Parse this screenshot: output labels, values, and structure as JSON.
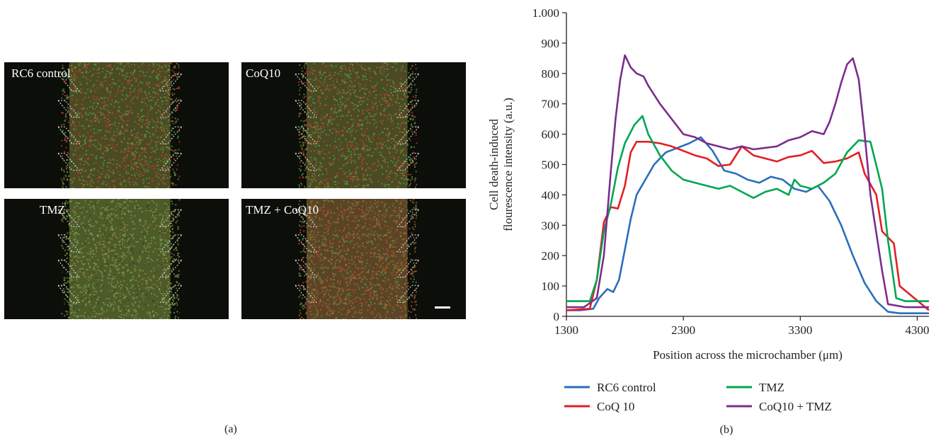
{
  "panel_a": {
    "tag": "(a)",
    "images": [
      {
        "label": "RC6 control",
        "tint": "mixed"
      },
      {
        "label": "CoQ10",
        "tint": "mixed"
      },
      {
        "label": "TMZ",
        "tint": "green"
      },
      {
        "label": "TMZ + CoQ10",
        "tint": "red"
      }
    ]
  },
  "panel_b": {
    "tag": "(b)"
  },
  "chart_data": {
    "type": "line",
    "xlabel": "Position across the microchamber (μm)",
    "ylabel_line1": "Cell death-induced",
    "ylabel_line2": "flourescence intensity (a.u.)",
    "xlim": [
      1300,
      4400
    ],
    "ylim": [
      0,
      1000
    ],
    "xticks": [
      1300,
      2300,
      3300,
      4300
    ],
    "xtick_labels": [
      "1300",
      "2300",
      "3300",
      "4300"
    ],
    "yticks": [
      0,
      100,
      200,
      300,
      400,
      500,
      600,
      700,
      800,
      900,
      1000
    ],
    "ytick_labels": [
      "0",
      "100",
      "200",
      "300",
      "400",
      "500",
      "600",
      "700",
      "800",
      "900",
      "1.000"
    ],
    "legend_position": "bottom",
    "series": [
      {
        "name": "RC6 control",
        "color": "#2a6ebb",
        "x": [
          1300,
          1420,
          1530,
          1580,
          1650,
          1700,
          1750,
          1800,
          1850,
          1900,
          1960,
          2050,
          2150,
          2250,
          2350,
          2450,
          2550,
          2650,
          2750,
          2850,
          2950,
          3050,
          3150,
          3250,
          3350,
          3450,
          3550,
          3650,
          3750,
          3850,
          3950,
          4050,
          4150,
          4400
        ],
        "y": [
          20,
          20,
          25,
          60,
          90,
          80,
          120,
          220,
          320,
          400,
          440,
          500,
          540,
          555,
          570,
          590,
          545,
          480,
          470,
          450,
          440,
          460,
          450,
          420,
          410,
          430,
          380,
          300,
          200,
          110,
          50,
          15,
          10,
          10
        ]
      },
      {
        "name": "CoQ 10",
        "color": "#e31e24",
        "x": [
          1300,
          1500,
          1560,
          1620,
          1680,
          1740,
          1800,
          1850,
          1900,
          2000,
          2100,
          2200,
          2300,
          2400,
          2500,
          2600,
          2700,
          2800,
          2900,
          3000,
          3100,
          3200,
          3300,
          3400,
          3500,
          3600,
          3700,
          3800,
          3850,
          3950,
          4000,
          4100,
          4150,
          4400
        ],
        "y": [
          20,
          25,
          120,
          310,
          360,
          355,
          430,
          540,
          575,
          575,
          570,
          560,
          545,
          530,
          520,
          495,
          500,
          560,
          530,
          520,
          510,
          525,
          530,
          545,
          505,
          510,
          520,
          540,
          470,
          400,
          280,
          240,
          100,
          20
        ]
      },
      {
        "name": "TMZ",
        "color": "#00a651",
        "x": [
          1300,
          1500,
          1560,
          1620,
          1680,
          1740,
          1800,
          1880,
          1950,
          2000,
          2100,
          2200,
          2300,
          2400,
          2500,
          2600,
          2700,
          2800,
          2900,
          3000,
          3100,
          3200,
          3250,
          3300,
          3400,
          3500,
          3600,
          3700,
          3800,
          3900,
          4000,
          4050,
          4120,
          4200,
          4400
        ],
        "y": [
          50,
          50,
          120,
          280,
          370,
          490,
          570,
          630,
          660,
          600,
          530,
          480,
          450,
          440,
          430,
          420,
          430,
          410,
          390,
          410,
          420,
          400,
          450,
          430,
          420,
          440,
          470,
          540,
          580,
          575,
          420,
          250,
          60,
          50,
          50
        ]
      },
      {
        "name": "CoQ10 + TMZ",
        "color": "#7b2d8e",
        "x": [
          1300,
          1450,
          1560,
          1620,
          1680,
          1720,
          1760,
          1800,
          1850,
          1900,
          1960,
          2000,
          2100,
          2200,
          2300,
          2400,
          2500,
          2600,
          2700,
          2800,
          2900,
          3000,
          3100,
          3200,
          3300,
          3400,
          3500,
          3550,
          3600,
          3650,
          3700,
          3750,
          3800,
          3850,
          3900,
          4000,
          4050,
          4200,
          4400
        ],
        "y": [
          30,
          30,
          60,
          200,
          480,
          650,
          780,
          860,
          820,
          800,
          790,
          760,
          700,
          650,
          600,
          590,
          570,
          560,
          550,
          560,
          550,
          555,
          560,
          580,
          590,
          610,
          600,
          640,
          700,
          770,
          830,
          850,
          780,
          600,
          400,
          150,
          40,
          30,
          30
        ]
      }
    ]
  }
}
